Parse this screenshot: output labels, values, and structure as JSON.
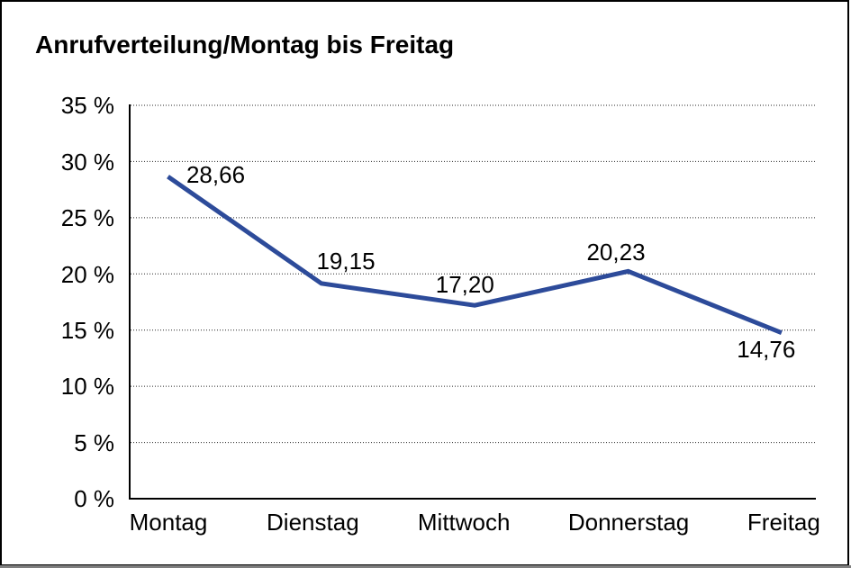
{
  "title": "Anrufverteilung/Montag bis Freitag",
  "chart_data": {
    "type": "line",
    "title": "Anrufverteilung/Montag bis Freitag",
    "categories": [
      "Montag",
      "Dienstag",
      "Mittwoch",
      "Donnerstag",
      "Freitag"
    ],
    "values": [
      28.66,
      19.15,
      17.2,
      20.23,
      14.76
    ],
    "data_labels": [
      "28,66",
      "19,15",
      "17,20",
      "20,23",
      "14,76"
    ],
    "y_tick_labels": [
      "0 %",
      "5 %",
      "10 %",
      "15 %",
      "20 %",
      "25 %",
      "30 %",
      "35 %"
    ],
    "ylim": [
      0,
      35
    ],
    "y_step": 5,
    "xlabel": "",
    "ylabel": "",
    "grid": "horizontal-dotted",
    "legend": "none",
    "colors": {
      "series_line": "#2d4b9a",
      "axis": "#000000",
      "gridline": "#262626",
      "text": "#000000",
      "background": "#ffffff",
      "frame_border": "#000000",
      "bottom_shadow": "#7f7f7f"
    }
  }
}
